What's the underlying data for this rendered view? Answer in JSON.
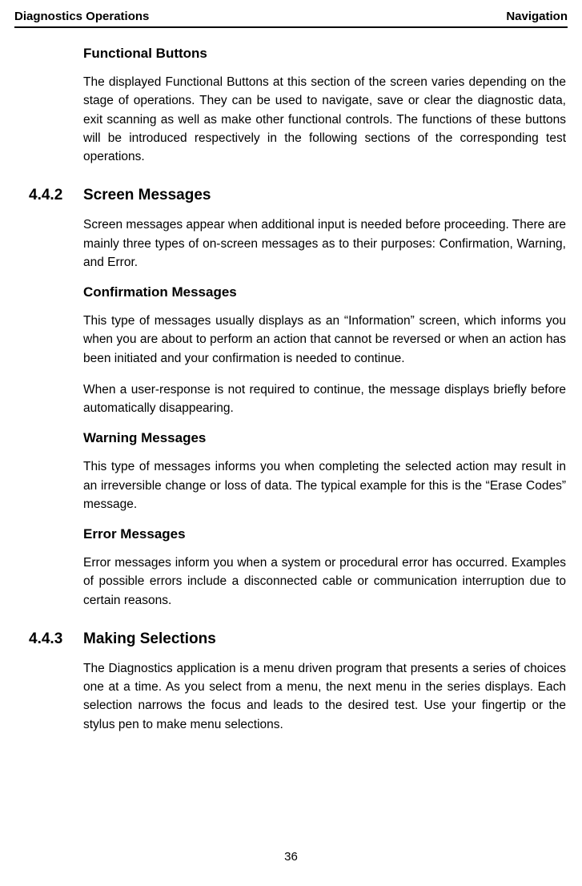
{
  "header": {
    "left": "Diagnostics Operations",
    "right": "Navigation"
  },
  "sections": {
    "functional_buttons": {
      "heading": "Functional Buttons",
      "body": "The displayed Functional Buttons at this section of the screen varies depending on the stage of operations. They can be used to navigate, save or clear the diagnostic data, exit scanning as well as make other functional controls. The functions of these buttons will be introduced respectively in the following sections of the corresponding test operations."
    },
    "screen_messages": {
      "number": "4.4.2",
      "heading": "Screen Messages",
      "intro": "Screen messages appear when additional input is needed before proceeding. There are mainly three types of on-screen messages as to their purposes: Confirmation, Warning, and Error.",
      "confirmation": {
        "heading": "Confirmation Messages",
        "p1": "This type of messages usually displays as an “Information” screen, which informs you when you are about to perform an action that cannot be reversed or when an action has been initiated and your confirmation is needed to continue.",
        "p2": "When a user-response is not required to continue, the message displays briefly before automatically disappearing."
      },
      "warning": {
        "heading": "Warning Messages",
        "body": "This type of messages informs you when completing the selected action may result in an irreversible change or loss of data. The typical example for this is the “Erase Codes” message."
      },
      "error": {
        "heading": "Error Messages",
        "body": "Error messages inform you when a system or procedural error has occurred. Examples of possible errors include a disconnected cable or communication interruption due to certain reasons."
      }
    },
    "making_selections": {
      "number": "4.4.3",
      "heading": "Making Selections",
      "body": "The Diagnostics application is a menu driven program that presents a series of choices one at a time. As you select from a menu, the next menu in the series displays. Each selection narrows the focus and leads to the desired test. Use your fingertip or the stylus pen to make menu selections."
    }
  },
  "page_number": "36"
}
